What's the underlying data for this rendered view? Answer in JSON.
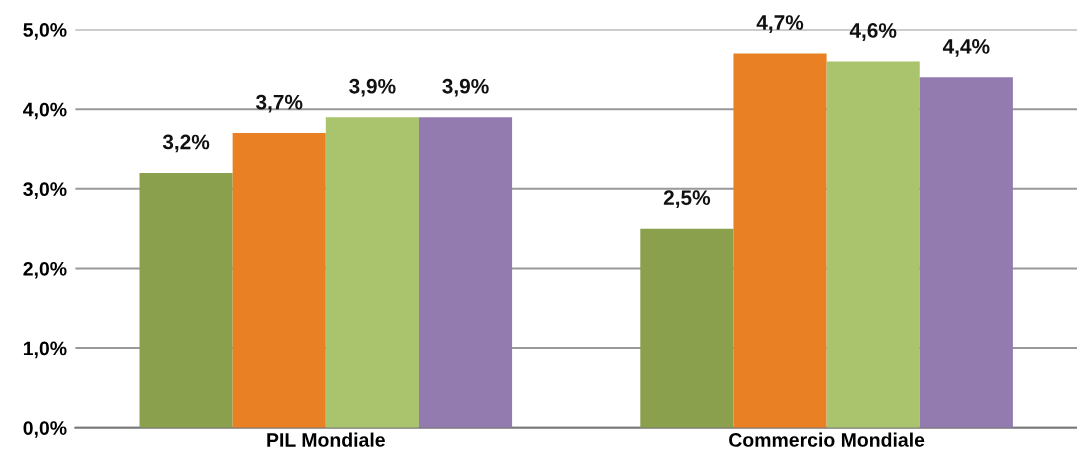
{
  "chart_data": {
    "type": "bar",
    "categories": [
      "PIL Mondiale",
      "Commercio Mondiale"
    ],
    "series": [
      {
        "color": "#8aa04d",
        "values": [
          3.2,
          2.5
        ],
        "value_labels": [
          "3,2%",
          "2,5%"
        ]
      },
      {
        "color": "#e98124",
        "values": [
          3.7,
          4.7
        ],
        "value_labels": [
          "3,7%",
          "4,7%"
        ]
      },
      {
        "color": "#a9c46c",
        "values": [
          3.9,
          4.6
        ],
        "value_labels": [
          "3,9%",
          "4,6%"
        ]
      },
      {
        "color": "#937bb0",
        "values": [
          3.9,
          4.4
        ],
        "value_labels": [
          "3,9%",
          "4,4%"
        ]
      }
    ],
    "ylim": [
      0,
      5
    ],
    "yticks": [
      {
        "value": 0,
        "label": "0,0%"
      },
      {
        "value": 1,
        "label": "1,0%"
      },
      {
        "value": 2,
        "label": "2,0%"
      },
      {
        "value": 3,
        "label": "3,0%"
      },
      {
        "value": 4,
        "label": "4,0%"
      },
      {
        "value": 5,
        "label": "5,0%"
      }
    ],
    "grid": "y"
  }
}
